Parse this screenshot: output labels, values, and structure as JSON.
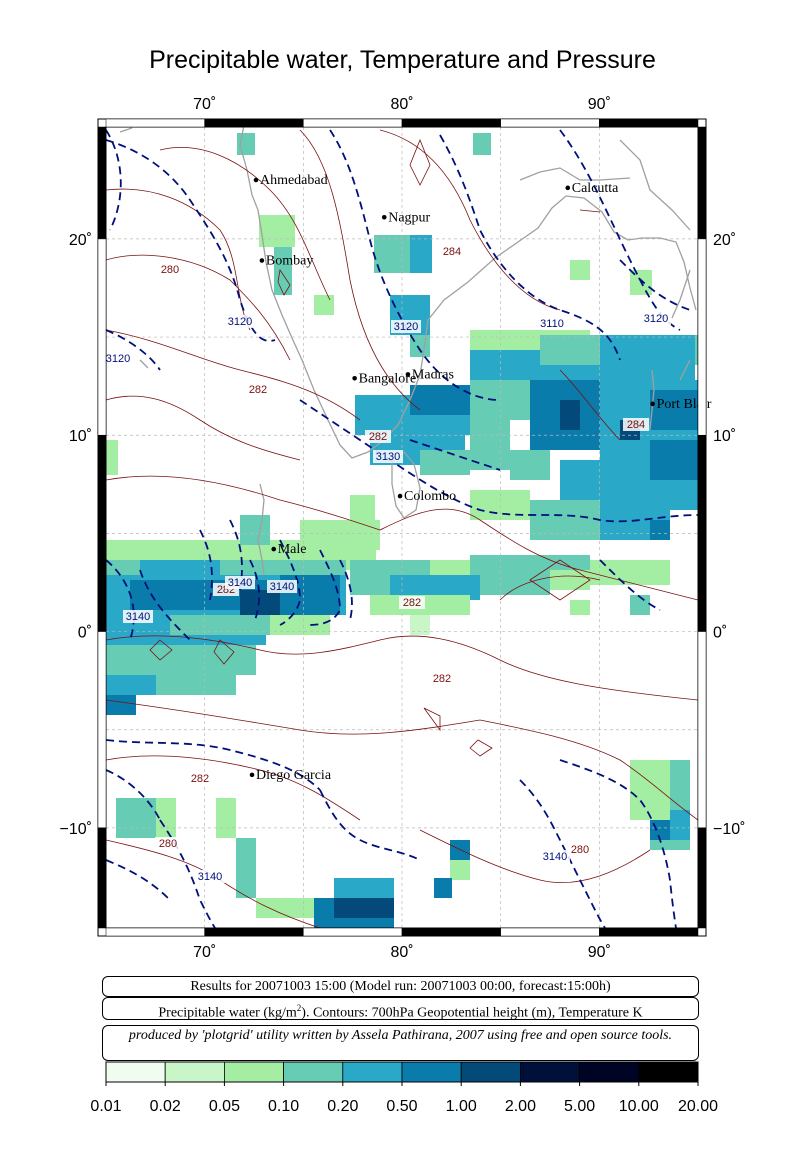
{
  "title": "Precipitable water, Temperature and Pressure",
  "lon_ticks": [
    "70˚",
    "80˚",
    "90˚"
  ],
  "lat_ticks": [
    "20˚",
    "10˚",
    "0˚",
    "−10˚"
  ],
  "cities": [
    {
      "name": "Ahmedabad",
      "lon": 72.6,
      "lat": 23.0
    },
    {
      "name": "Nagpur",
      "lon": 79.1,
      "lat": 21.1
    },
    {
      "name": "Calcutta",
      "lon": 88.4,
      "lat": 22.6
    },
    {
      "name": "Bombay",
      "lon": 72.9,
      "lat": 18.9
    },
    {
      "name": "Bangalore",
      "lon": 77.6,
      "lat": 12.9
    },
    {
      "name": "Madras",
      "lon": 80.3,
      "lat": 13.1
    },
    {
      "name": "Port Blair",
      "lon": 92.7,
      "lat": 11.6
    },
    {
      "name": "Colombo",
      "lon": 79.9,
      "lat": 6.9
    },
    {
      "name": "Male",
      "lon": 73.5,
      "lat": 4.2
    },
    {
      "name": "Diego Garcia",
      "lon": 72.4,
      "lat": -7.3
    }
  ],
  "contour_labels_temperature": [
    "280",
    "282",
    "282",
    "284",
    "284",
    "282",
    "282",
    "282",
    "280",
    "282",
    "280"
  ],
  "contour_labels_height": [
    "3120",
    "3120",
    "3120",
    "3110",
    "3120",
    "3130",
    "3140",
    "3140",
    "3140",
    "3140",
    "3140"
  ],
  "info": {
    "results": "Results for 20071003 15:00 (Model run: 20071003 00:00, forecast:15:00h)",
    "legend_prefix": "Precipitable water (kg/m",
    "legend_sup": "2",
    "legend_suffix": ").  Contours: 700hPa Geopotential height (m), Temperature K",
    "credit": "produced by 'plotgrid' utility written by Assela Pathirana, 2007 using free and open source tools."
  },
  "colorbar": {
    "labels": [
      "0.01",
      "0.02",
      "0.05",
      "0.10",
      "0.20",
      "0.50",
      "1.00",
      "2.00",
      "5.00",
      "10.00",
      "20.00"
    ],
    "colors": [
      "#f0fcf0",
      "#c8f6c8",
      "#a4eea4",
      "#66ccb4",
      "#2aa8c8",
      "#0a7cac",
      "#034a7a",
      "#00103a",
      "#000424",
      "#000000"
    ]
  },
  "colors": {
    "land_outline": "#a0a0a0",
    "temperature_contour": "#7a1010",
    "height_contour": "#00107a",
    "grid": "#b8b8b8"
  }
}
